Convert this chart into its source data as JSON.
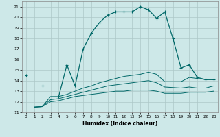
{
  "xlabel": "Humidex (Indice chaleur)",
  "bg_color": "#cde8e8",
  "grid_color": "#adc8c8",
  "line_color": "#006868",
  "ylim": [
    11,
    21.5
  ],
  "xlim": [
    -0.5,
    23.5
  ],
  "yticks": [
    11,
    12,
    13,
    14,
    15,
    16,
    17,
    18,
    19,
    20,
    21
  ],
  "xticks": [
    0,
    1,
    2,
    3,
    4,
    5,
    6,
    7,
    8,
    9,
    10,
    11,
    12,
    13,
    14,
    15,
    16,
    17,
    18,
    19,
    20,
    21,
    22,
    23
  ],
  "main_x": [
    0,
    1,
    2,
    3,
    4,
    5,
    6,
    7,
    8,
    9,
    10,
    11,
    12,
    13,
    14,
    15,
    16,
    17,
    18,
    19,
    20,
    21,
    22,
    23
  ],
  "main_y": [
    14.5,
    null,
    13.5,
    null,
    12.5,
    15.5,
    13.5,
    17.0,
    18.5,
    19.5,
    20.2,
    20.5,
    20.5,
    20.5,
    21.0,
    20.7,
    19.9,
    20.5,
    18.0,
    15.2,
    15.5,
    14.3,
    14.1,
    14.1
  ],
  "flat1_x": [
    1,
    2,
    3,
    4,
    5,
    6,
    7,
    8,
    9,
    10,
    11,
    12,
    13,
    14,
    15,
    16,
    17,
    19,
    20,
    21,
    22,
    23
  ],
  "flat1_y": [
    11.5,
    11.55,
    12.5,
    12.5,
    12.7,
    13.0,
    13.3,
    13.5,
    13.8,
    14.0,
    14.2,
    14.4,
    14.5,
    14.6,
    14.8,
    14.6,
    13.9,
    13.9,
    14.3,
    14.2,
    14.1,
    14.1
  ],
  "flat2_x": [
    1,
    2,
    3,
    4,
    5,
    6,
    7,
    8,
    9,
    10,
    11,
    12,
    13,
    14,
    15,
    16,
    17,
    19,
    20,
    21,
    22,
    23
  ],
  "flat2_y": [
    11.5,
    11.55,
    12.2,
    12.3,
    12.5,
    12.7,
    12.9,
    13.1,
    13.3,
    13.5,
    13.6,
    13.7,
    13.8,
    13.9,
    14.0,
    13.8,
    13.4,
    13.3,
    13.4,
    13.3,
    13.3,
    13.5
  ],
  "flat3_x": [
    1,
    2,
    3,
    4,
    5,
    6,
    7,
    8,
    9,
    10,
    11,
    12,
    13,
    14,
    15,
    16,
    17,
    19,
    20,
    21,
    22,
    23
  ],
  "flat3_y": [
    11.5,
    11.55,
    12.0,
    12.1,
    12.3,
    12.5,
    12.6,
    12.7,
    12.8,
    12.9,
    13.0,
    13.0,
    13.1,
    13.1,
    13.1,
    13.0,
    12.8,
    12.8,
    12.9,
    12.9,
    12.9,
    13.0
  ]
}
